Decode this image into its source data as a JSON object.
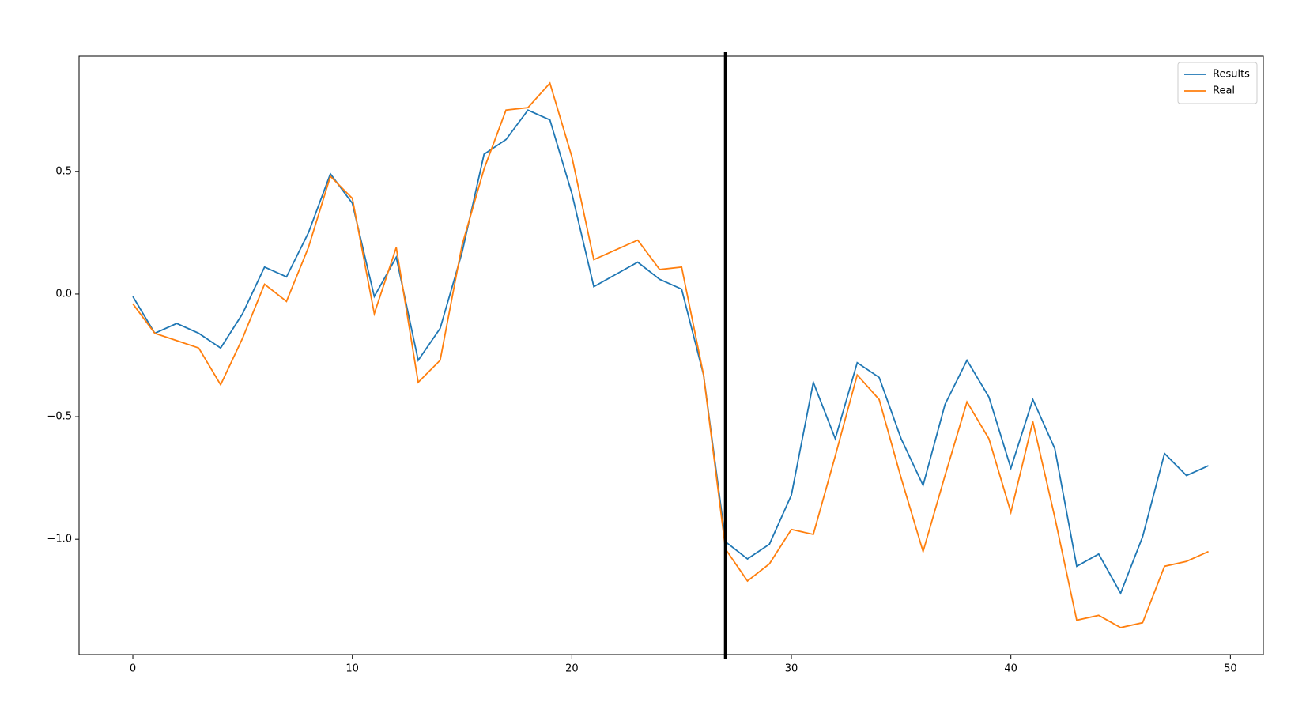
{
  "chart_data": {
    "type": "line",
    "x": [
      0,
      1,
      2,
      3,
      4,
      5,
      6,
      7,
      8,
      9,
      10,
      11,
      12,
      13,
      14,
      15,
      16,
      17,
      18,
      19,
      20,
      21,
      22,
      23,
      24,
      25,
      26,
      27,
      28,
      29,
      30,
      31,
      32,
      33,
      34,
      35,
      36,
      37,
      38,
      39,
      40,
      41,
      42,
      43,
      44,
      45,
      46,
      47,
      48,
      49
    ],
    "series": [
      {
        "name": "Results",
        "color": "#1f77b4",
        "values": [
          -0.01,
          -0.16,
          -0.12,
          -0.16,
          -0.22,
          -0.08,
          0.11,
          0.07,
          0.25,
          0.49,
          0.37,
          -0.01,
          0.15,
          -0.27,
          -0.14,
          0.17,
          0.57,
          0.63,
          0.75,
          0.71,
          0.41,
          0.03,
          0.08,
          0.13,
          0.06,
          0.02,
          -0.33,
          -1.01,
          -1.08,
          -1.02,
          -0.82,
          -0.36,
          -0.59,
          -0.28,
          -0.34,
          -0.59,
          -0.78,
          -0.45,
          -0.27,
          -0.42,
          -0.71,
          -0.43,
          -0.63,
          -1.11,
          -1.06,
          -1.22,
          -0.99,
          -0.65,
          -0.74,
          -0.7
        ]
      },
      {
        "name": "Real",
        "color": "#ff7f0e",
        "values": [
          -0.04,
          -0.16,
          -0.19,
          -0.22,
          -0.37,
          -0.18,
          0.04,
          -0.03,
          0.19,
          0.48,
          0.39,
          -0.08,
          0.19,
          -0.36,
          -0.27,
          0.2,
          0.51,
          0.75,
          0.76,
          0.86,
          0.56,
          0.14,
          0.18,
          0.22,
          0.1,
          0.11,
          -0.33,
          -1.04,
          -1.17,
          -1.1,
          -0.96,
          -0.98,
          -0.66,
          -0.33,
          -0.43,
          -0.75,
          -1.05,
          -0.74,
          -0.44,
          -0.59,
          -0.89,
          -0.52,
          -0.91,
          -1.33,
          -1.31,
          -1.36,
          -1.34,
          -1.11,
          -1.09,
          -1.05
        ]
      }
    ],
    "xlim": [
      -2.45,
      51.5
    ],
    "ylim": [
      -1.47,
      0.97
    ],
    "xticks": [
      0,
      10,
      20,
      30,
      40,
      50
    ],
    "yticks": [
      {
        "value": -1.0,
        "label": "−1.0"
      },
      {
        "value": -0.5,
        "label": "−0.5"
      },
      {
        "value": 0,
        "label": "0.0"
      },
      0.5
    ],
    "vline_x": 27,
    "vline_color": "#000000",
    "legend": "upper right"
  }
}
